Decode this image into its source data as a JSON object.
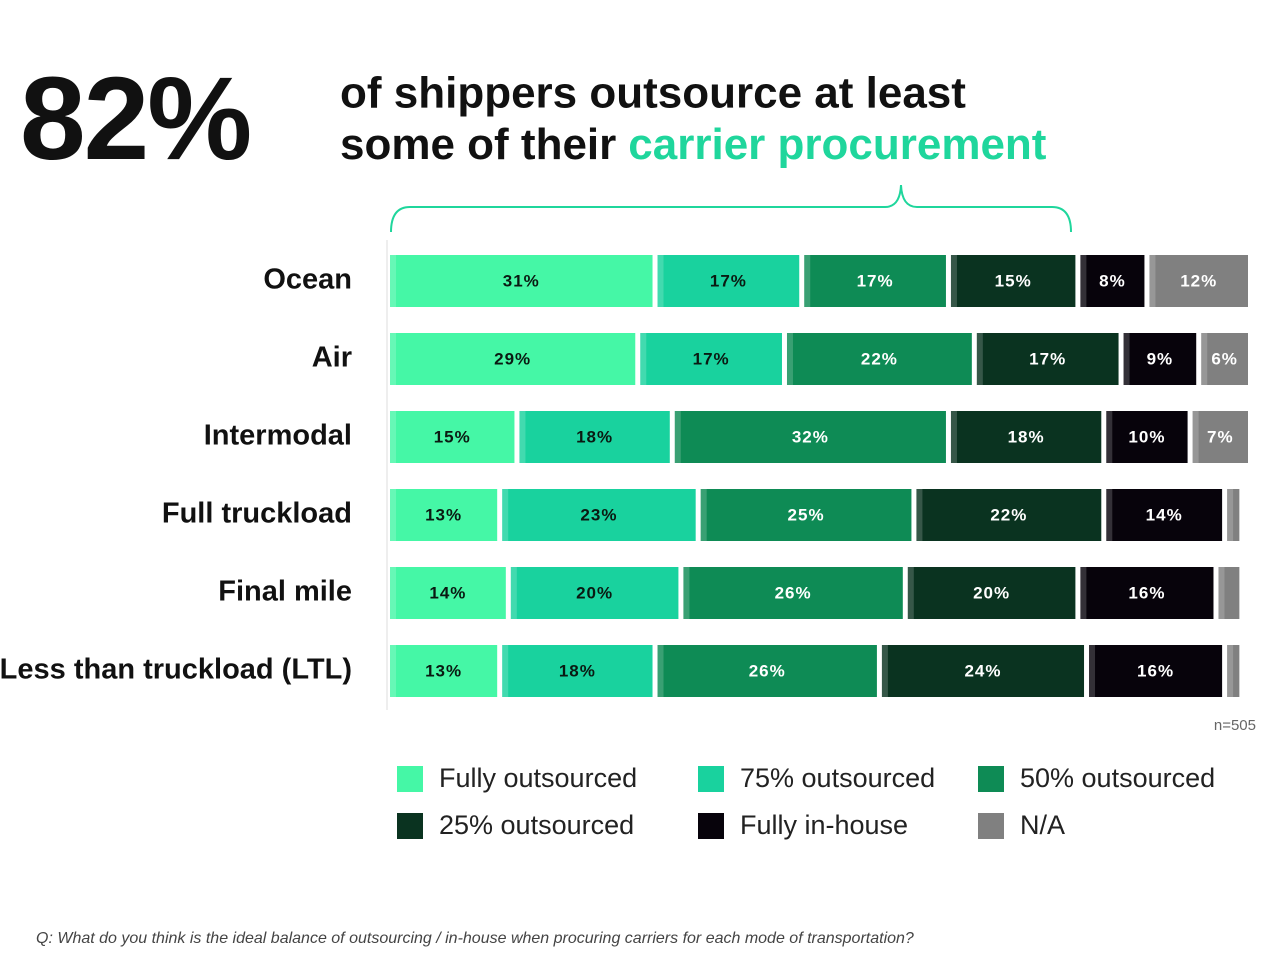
{
  "chart_data": {
    "type": "bar",
    "orientation": "horizontal",
    "stacked": true,
    "headline": {
      "stat": "82%",
      "line1": "of shippers outsource at least",
      "line2": "some of their",
      "highlight": "carrier procurement"
    },
    "categories": [
      "Ocean",
      "Air",
      "Intermodal",
      "Full truckload",
      "Final mile",
      "Less than truckload (LTL)"
    ],
    "xlim": [
      0,
      100
    ],
    "series": [
      {
        "name": "Fully outsourced",
        "color": "#45f7a6",
        "values": [
          31,
          29,
          15,
          13,
          14,
          13
        ],
        "value_labels": [
          "31%",
          "29%",
          "15%",
          "13%",
          "14%",
          "13%"
        ]
      },
      {
        "name": "75% outsourced",
        "color": "#19d29e",
        "values": [
          17,
          17,
          18,
          23,
          20,
          18
        ],
        "value_labels": [
          "17%",
          "17%",
          "18%",
          "23%",
          "20%",
          "18%"
        ]
      },
      {
        "name": "50% outsourced",
        "color": "#0e8b55",
        "values": [
          17,
          22,
          32,
          25,
          26,
          26
        ],
        "value_labels": [
          "17%",
          "22%",
          "32%",
          "25%",
          "26%",
          "26%"
        ]
      },
      {
        "name": "25% outsourced",
        "color": "#0a3320",
        "values": [
          15,
          17,
          18,
          22,
          20,
          24
        ],
        "value_labels": [
          "15%",
          "17%",
          "18%",
          "22%",
          "20%",
          "24%"
        ]
      },
      {
        "name": "Fully in-house",
        "color": "#07030b",
        "values": [
          8,
          9,
          10,
          14,
          16,
          16
        ],
        "value_labels": [
          "8%",
          "9%",
          "10%",
          "14%",
          "16%",
          "16%"
        ]
      },
      {
        "name": "N/A",
        "color": "#808080",
        "values": [
          12,
          6,
          7,
          2,
          3,
          2
        ],
        "value_labels": [
          "12%",
          "6%",
          "7%",
          null,
          null,
          null
        ]
      }
    ],
    "note": "n=505",
    "footnote": "Q: What do you think is the ideal balance of outsourcing / in-house when procuring carriers for each mode of transportation?"
  }
}
